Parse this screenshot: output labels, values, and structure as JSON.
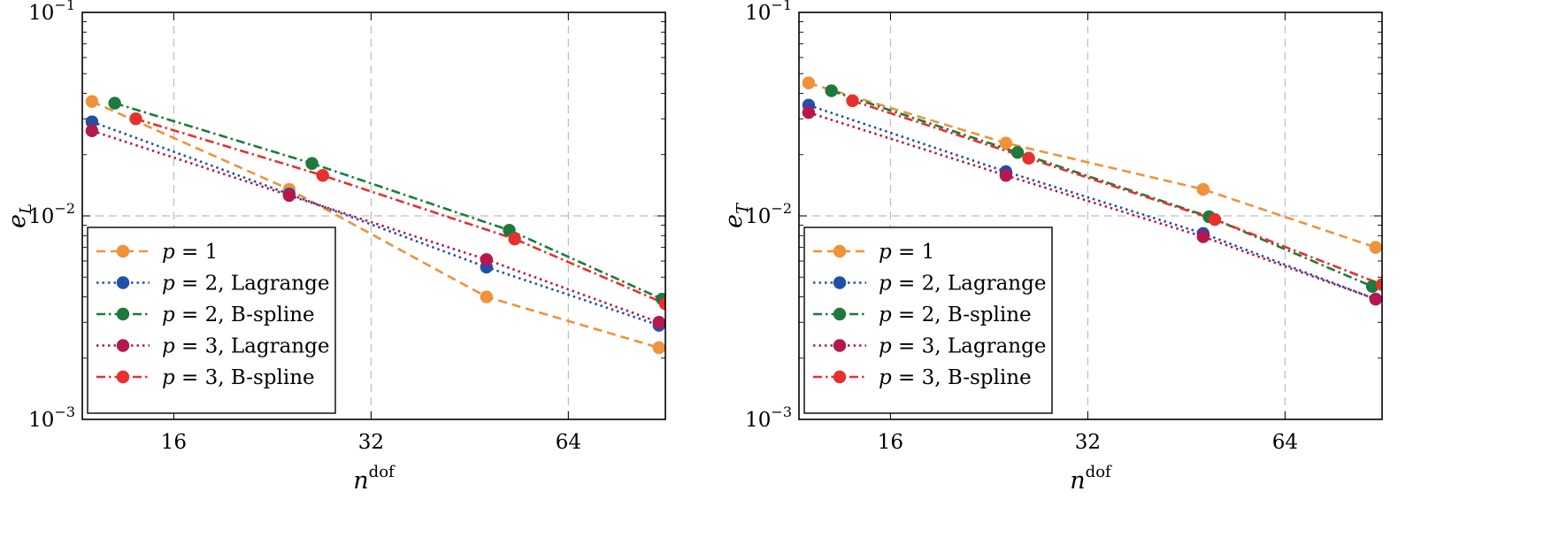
{
  "chart_data": [
    {
      "type": "line",
      "ylabel": "e_L",
      "xlabel": "n^dof",
      "xscale": "log2",
      "yscale": "log10",
      "xlim": [
        11.6,
        90
      ],
      "ylim": [
        0.001,
        0.1
      ],
      "xticks": [
        16,
        32,
        64
      ],
      "xtick_labels": [
        "16",
        "32",
        "64"
      ],
      "yticks": [
        0.001,
        0.01,
        0.1
      ],
      "ytick_labels": [
        {
          "base": "10",
          "exp": "−3"
        },
        {
          "base": "10",
          "exp": "−2"
        },
        {
          "base": "10",
          "exp": "−1"
        }
      ],
      "grid": true,
      "legend_position": "bottom-left",
      "series": [
        {
          "name": "p = 1",
          "label_main": "p = 1",
          "label_suffix": "",
          "color": "#F0923A",
          "dash": "dashed",
          "x": [
            12,
            24,
            48,
            88
          ],
          "y": [
            0.0365,
            0.0135,
            0.004,
            0.00225
          ]
        },
        {
          "name": "p = 2, Lagrange",
          "label_main": "p = 2",
          "label_suffix": ", Lagrange",
          "color": "#2050A8",
          "dash": "dotted",
          "x": [
            12,
            24,
            48,
            88
          ],
          "y": [
            0.029,
            0.0128,
            0.0056,
            0.0029
          ]
        },
        {
          "name": "p = 2, B-spline",
          "label_main": "p = 2",
          "label_suffix": ", B-spline",
          "color": "#1E7A3C",
          "dash": "dashdot",
          "x": [
            13,
            26,
            52,
            89
          ],
          "y": [
            0.0358,
            0.0181,
            0.0085,
            0.0039
          ]
        },
        {
          "name": "p = 3, Lagrange",
          "label_main": "p = 3",
          "label_suffix": ", Lagrange",
          "color": "#B5174E",
          "dash": "dotted",
          "x": [
            12,
            24,
            48,
            88
          ],
          "y": [
            0.0262,
            0.0126,
            0.0061,
            0.003
          ]
        },
        {
          "name": "p = 3, B-spline",
          "label_main": "p = 3",
          "label_suffix": ", B-spline",
          "color": "#E8302E",
          "dash": "dashdot",
          "x": [
            14,
            27,
            53,
            90
          ],
          "y": [
            0.03,
            0.0158,
            0.0077,
            0.0037
          ]
        }
      ]
    },
    {
      "type": "line",
      "ylabel": "e_T",
      "xlabel": "n^dof",
      "xscale": "log2",
      "yscale": "log10",
      "xlim": [
        11.6,
        90
      ],
      "ylim": [
        0.001,
        0.1
      ],
      "xticks": [
        16,
        32,
        64
      ],
      "xtick_labels": [
        "16",
        "32",
        "64"
      ],
      "yticks": [
        0.001,
        0.01,
        0.1
      ],
      "ytick_labels": [
        {
          "base": "10",
          "exp": "−3"
        },
        {
          "base": "10",
          "exp": "−2"
        },
        {
          "base": "10",
          "exp": "−1"
        }
      ],
      "grid": true,
      "legend_position": "bottom-left",
      "series": [
        {
          "name": "p = 1",
          "label_main": "p = 1",
          "label_suffix": "",
          "color": "#F0923A",
          "dash": "dashed",
          "x": [
            12,
            24,
            48,
            88
          ],
          "y": [
            0.045,
            0.0228,
            0.0135,
            0.007
          ]
        },
        {
          "name": "p = 2, Lagrange",
          "label_main": "p = 2",
          "label_suffix": ", Lagrange",
          "color": "#2050A8",
          "dash": "dotted",
          "x": [
            12,
            24,
            48,
            88
          ],
          "y": [
            0.035,
            0.0165,
            0.0082,
            0.0039
          ]
        },
        {
          "name": "p = 2, B-spline",
          "label_main": "p = 2",
          "label_suffix": ", B-spline",
          "color": "#1E7A3C",
          "dash": "dashdot",
          "x": [
            13,
            25,
            49,
            87
          ],
          "y": [
            0.0412,
            0.0205,
            0.0099,
            0.0045
          ]
        },
        {
          "name": "p = 3, Lagrange",
          "label_main": "p = 3",
          "label_suffix": ", Lagrange",
          "color": "#B5174E",
          "dash": "dotted",
          "x": [
            12,
            24,
            48,
            88
          ],
          "y": [
            0.0322,
            0.0158,
            0.0079,
            0.0039
          ]
        },
        {
          "name": "p = 3, B-spline",
          "label_main": "p = 3",
          "label_suffix": ", B-spline",
          "color": "#E8302E",
          "dash": "dashdot",
          "x": [
            14,
            26,
            50,
            90
          ],
          "y": [
            0.0368,
            0.0192,
            0.0096,
            0.0046
          ]
        }
      ]
    }
  ]
}
